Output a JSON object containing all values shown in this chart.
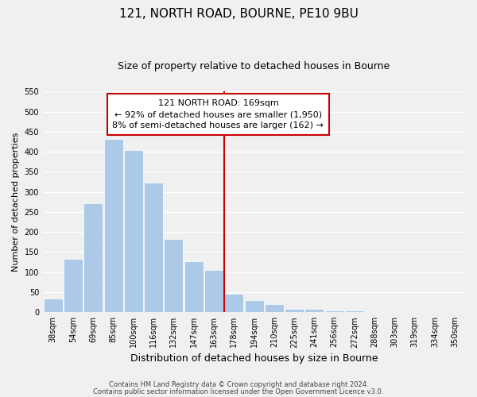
{
  "title": "121, NORTH ROAD, BOURNE, PE10 9BU",
  "subtitle": "Size of property relative to detached houses in Bourne",
  "xlabel": "Distribution of detached houses by size in Bourne",
  "ylabel": "Number of detached properties",
  "footnote1": "Contains HM Land Registry data © Crown copyright and database right 2024.",
  "footnote2": "Contains public sector information licensed under the Open Government Licence v3.0.",
  "bar_labels": [
    "38sqm",
    "54sqm",
    "69sqm",
    "85sqm",
    "100sqm",
    "116sqm",
    "132sqm",
    "147sqm",
    "163sqm",
    "178sqm",
    "194sqm",
    "210sqm",
    "225sqm",
    "241sqm",
    "256sqm",
    "272sqm",
    "288sqm",
    "303sqm",
    "319sqm",
    "334sqm",
    "350sqm"
  ],
  "bar_values": [
    35,
    132,
    272,
    432,
    405,
    323,
    183,
    128,
    105,
    45,
    30,
    20,
    8,
    8,
    5,
    5,
    3,
    3,
    2,
    2,
    2
  ],
  "bar_color": "#adc9e8",
  "highlight_bar_color": "#adc9e8",
  "highlight_bar_index": 8,
  "vline_x_index": 8,
  "vline_color": "#cc0000",
  "ylim": [
    0,
    550
  ],
  "yticks": [
    0,
    50,
    100,
    150,
    200,
    250,
    300,
    350,
    400,
    450,
    500,
    550
  ],
  "annotation_line1": "121 NORTH ROAD: 169sqm",
  "annotation_line2": "← 92% of detached houses are smaller (1,950)",
  "annotation_line3": "8% of semi-detached houses are larger (162) →",
  "background_color": "#f0f0f0",
  "grid_color": "#ffffff",
  "title_fontsize": 11,
  "subtitle_fontsize": 9,
  "axis_label_fontsize": 8,
  "tick_fontsize": 7,
  "annotation_fontsize": 8
}
